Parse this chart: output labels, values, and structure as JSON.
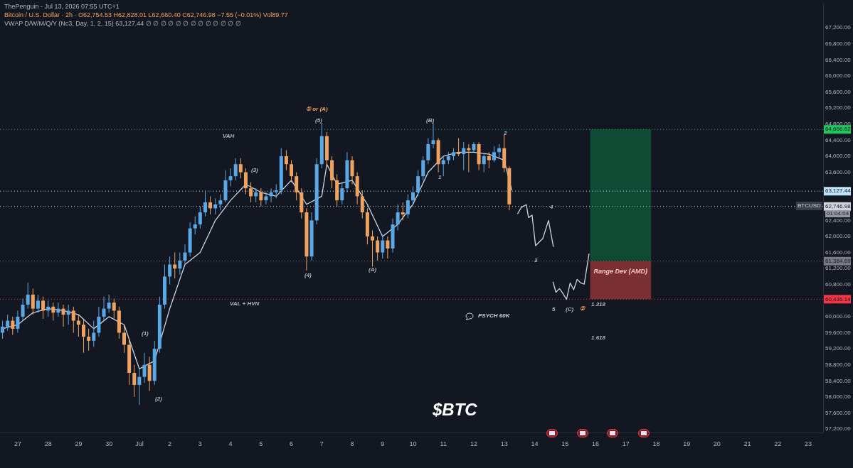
{
  "chart_data": {
    "type": "candlestick",
    "title": "Bitcoin / U.S. Dollar · 2h · O62,754.53 H62,828.01 L62,660.40 C62,746.98 −7.55 (−0.01%) Vol89.77",
    "subtitle": "VWAP D/W/M/Q/Y (Nc3, Day, 1, 2, 15) 63,127.44 ∅ ∅ ∅ ∅ ∅ ∅ ∅ ∅ ∅ ∅ ∅ ∅ ∅",
    "x": [
      "2026-06-26T12:00",
      "2026-06-26T16:00",
      "2026-06-26T20:00",
      "2026-06-27T00:00",
      "2026-06-27T04:00",
      "2026-06-27T08:00",
      "2026-06-27T12:00",
      "2026-06-27T16:00",
      "2026-06-27T20:00",
      "2026-06-28T00:00",
      "2026-06-28T04:00",
      "2026-06-28T08:00",
      "2026-06-28T12:00",
      "2026-06-28T16:00",
      "2026-06-28T20:00",
      "2026-06-29T00:00",
      "2026-06-29T04:00",
      "2026-06-29T08:00",
      "2026-06-29T12:00",
      "2026-06-29T16:00",
      "2026-06-29T20:00",
      "2026-06-30T00:00",
      "2026-06-30T04:00",
      "2026-06-30T08:00",
      "2026-06-30T12:00",
      "2026-06-30T16:00",
      "2026-06-30T20:00",
      "2026-07-01T00:00",
      "2026-07-01T04:00",
      "2026-07-01T08:00",
      "2026-07-01T12:00",
      "2026-07-01T16:00",
      "2026-07-01T20:00",
      "2026-07-02T00:00",
      "2026-07-02T04:00",
      "2026-07-02T08:00",
      "2026-07-02T12:00",
      "2026-07-02T16:00",
      "2026-07-02T20:00",
      "2026-07-03T00:00",
      "2026-07-03T04:00",
      "2026-07-03T08:00",
      "2026-07-03T12:00",
      "2026-07-03T16:00",
      "2026-07-03T20:00",
      "2026-07-04T00:00",
      "2026-07-04T04:00",
      "2026-07-04T08:00",
      "2026-07-04T12:00",
      "2026-07-04T16:00",
      "2026-07-04T20:00",
      "2026-07-05T00:00",
      "2026-07-05T04:00",
      "2026-07-05T08:00",
      "2026-07-05T12:00",
      "2026-07-05T16:00",
      "2026-07-05T20:00",
      "2026-07-06T00:00",
      "2026-07-06T04:00",
      "2026-07-06T08:00",
      "2026-07-06T12:00",
      "2026-07-06T16:00",
      "2026-07-06T20:00",
      "2026-07-07T00:00",
      "2026-07-07T04:00",
      "2026-07-07T08:00",
      "2026-07-07T12:00",
      "2026-07-07T16:00",
      "2026-07-07T20:00",
      "2026-07-08T00:00",
      "2026-07-08T04:00",
      "2026-07-08T08:00",
      "2026-07-08T12:00",
      "2026-07-08T16:00",
      "2026-07-08T20:00",
      "2026-07-09T00:00",
      "2026-07-09T04:00",
      "2026-07-09T08:00",
      "2026-07-09T12:00",
      "2026-07-09T16:00",
      "2026-07-09T20:00",
      "2026-07-10T00:00",
      "2026-07-10T04:00",
      "2026-07-10T08:00",
      "2026-07-10T12:00",
      "2026-07-10T16:00",
      "2026-07-10T20:00",
      "2026-07-11T00:00",
      "2026-07-11T04:00",
      "2026-07-11T08:00",
      "2026-07-11T12:00",
      "2026-07-11T16:00",
      "2026-07-11T20:00",
      "2026-07-12T00:00",
      "2026-07-12T04:00",
      "2026-07-12T08:00",
      "2026-07-12T12:00",
      "2026-07-12T16:00",
      "2026-07-12T20:00",
      "2026-07-13T00:00",
      "2026-07-13T04:00"
    ],
    "ohlc": [
      [
        59600,
        59900,
        59450,
        59750
      ],
      [
        59750,
        60050,
        59650,
        59900
      ],
      [
        59900,
        60000,
        59550,
        59700
      ],
      [
        59700,
        60150,
        59600,
        60000
      ],
      [
        60000,
        60450,
        59900,
        60300
      ],
      [
        60300,
        60850,
        60200,
        60550
      ],
      [
        60550,
        60700,
        60050,
        60200
      ],
      [
        60200,
        60550,
        60100,
        60400
      ],
      [
        60400,
        60500,
        59950,
        60150
      ],
      [
        60150,
        60400,
        60000,
        60250
      ],
      [
        60250,
        60350,
        59900,
        60100
      ],
      [
        60100,
        60350,
        60000,
        60200
      ],
      [
        60200,
        60300,
        59750,
        60050
      ],
      [
        60050,
        60300,
        59800,
        60150
      ],
      [
        60150,
        60250,
        59600,
        59900
      ],
      [
        59900,
        60050,
        59500,
        59800
      ],
      [
        59800,
        59950,
        59100,
        59500
      ],
      [
        59500,
        59700,
        59150,
        59400
      ],
      [
        59400,
        59900,
        59250,
        59600
      ],
      [
        59600,
        60250,
        59500,
        60000
      ],
      [
        60000,
        60500,
        59900,
        60200
      ],
      [
        60200,
        60550,
        60100,
        60350
      ],
      [
        60350,
        60450,
        59950,
        60150
      ],
      [
        60150,
        60250,
        59450,
        59600
      ],
      [
        59600,
        59800,
        59100,
        59300
      ],
      [
        59300,
        59450,
        58300,
        58600
      ],
      [
        58600,
        58800,
        58000,
        58300
      ],
      [
        58300,
        58700,
        57800,
        58500
      ],
      [
        58500,
        59100,
        58350,
        58800
      ],
      [
        58800,
        59000,
        58150,
        58400
      ],
      [
        58400,
        59400,
        58300,
        59200
      ],
      [
        59200,
        60500,
        59100,
        60300
      ],
      [
        60300,
        61300,
        60200,
        61000
      ],
      [
        61000,
        61500,
        60800,
        61300
      ],
      [
        61300,
        61600,
        60950,
        61200
      ],
      [
        61200,
        61600,
        61050,
        61400
      ],
      [
        61400,
        61800,
        61300,
        61600
      ],
      [
        61600,
        62350,
        61500,
        62200
      ],
      [
        62200,
        62500,
        62050,
        62300
      ],
      [
        62300,
        62750,
        62200,
        62600
      ],
      [
        62600,
        63150,
        62500,
        62850
      ],
      [
        62850,
        63000,
        62550,
        62700
      ],
      [
        62700,
        62950,
        62550,
        62800
      ],
      [
        62800,
        63050,
        62650,
        62900
      ],
      [
        62900,
        63650,
        62850,
        63400
      ],
      [
        63400,
        63700,
        63250,
        63500
      ],
      [
        63500,
        63950,
        63400,
        63800
      ],
      [
        63800,
        63950,
        63450,
        63600
      ],
      [
        63600,
        63700,
        63050,
        63200
      ],
      [
        63200,
        63350,
        62850,
        63000
      ],
      [
        63000,
        63200,
        62850,
        63100
      ],
      [
        63100,
        63200,
        62750,
        62900
      ],
      [
        62900,
        63100,
        62800,
        63000
      ],
      [
        63000,
        63200,
        62850,
        63100
      ],
      [
        63100,
        63300,
        62950,
        63150
      ],
      [
        63150,
        64200,
        63050,
        64000
      ],
      [
        64000,
        64150,
        63650,
        63800
      ],
      [
        63800,
        63900,
        63350,
        63500
      ],
      [
        63500,
        63600,
        62900,
        63100
      ],
      [
        63100,
        63200,
        62450,
        62600
      ],
      [
        62600,
        62700,
        61150,
        61500
      ],
      [
        61500,
        62600,
        61400,
        62400
      ],
      [
        62400,
        63950,
        62300,
        63800
      ],
      [
        63800,
        64830,
        63700,
        64500
      ],
      [
        64500,
        64600,
        63750,
        63900
      ],
      [
        63900,
        64000,
        63200,
        63400
      ],
      [
        63400,
        63550,
        62750,
        62900
      ],
      [
        62900,
        63350,
        62800,
        63200
      ],
      [
        63200,
        64100,
        63100,
        63900
      ],
      [
        63900,
        64000,
        63300,
        63500
      ],
      [
        63500,
        63600,
        62800,
        63000
      ],
      [
        63000,
        63150,
        62450,
        62600
      ],
      [
        62600,
        62700,
        61800,
        62000
      ],
      [
        62000,
        62150,
        61250,
        61900
      ],
      [
        61900,
        62000,
        61400,
        61600
      ],
      [
        61600,
        62050,
        61450,
        61900
      ],
      [
        61900,
        62000,
        61450,
        61700
      ],
      [
        61700,
        62450,
        61600,
        62300
      ],
      [
        62300,
        62800,
        62150,
        62600
      ],
      [
        62600,
        62850,
        62400,
        62550
      ],
      [
        62550,
        63050,
        62450,
        62900
      ],
      [
        62900,
        63250,
        62800,
        63100
      ],
      [
        63100,
        63650,
        63000,
        63500
      ],
      [
        63500,
        64000,
        63400,
        63900
      ],
      [
        63900,
        64450,
        63800,
        64300
      ],
      [
        64300,
        64830,
        64200,
        64400
      ],
      [
        64400,
        64450,
        63600,
        63800
      ],
      [
        63800,
        64000,
        63500,
        63900
      ],
      [
        63900,
        64100,
        63800,
        64000
      ],
      [
        64000,
        64200,
        63900,
        64100
      ],
      [
        64100,
        64450,
        64000,
        64050
      ],
      [
        64050,
        64350,
        63650,
        64200
      ],
      [
        64200,
        64300,
        63600,
        64150
      ],
      [
        64150,
        64350,
        64100,
        64300
      ],
      [
        64300,
        64350,
        63650,
        63800
      ],
      [
        63800,
        64050,
        63600,
        64000
      ],
      [
        64000,
        64100,
        63700,
        63900
      ],
      [
        63900,
        64250,
        63850,
        64100
      ],
      [
        64100,
        64300,
        63950,
        64200
      ],
      [
        64200,
        64550,
        63600,
        63700
      ],
      [
        63700,
        63750,
        62650,
        62800
      ]
    ],
    "colors": [
      "#5aa9e6",
      "#5aa9e6",
      "#f0a35e",
      "#5aa9e6",
      "#5aa9e6",
      "#5aa9e6",
      "#f0a35e",
      "#5aa9e6",
      "#f0a35e",
      "#5aa9e6",
      "#f0a35e",
      "#5aa9e6",
      "#f0a35e",
      "#5aa9e6",
      "#f0a35e",
      "#f0a35e",
      "#f0a35e",
      "#f0a35e",
      "#5aa9e6",
      "#5aa9e6",
      "#5aa9e6",
      "#5aa9e6",
      "#f0a35e",
      "#f0a35e",
      "#f0a35e",
      "#f0a35e",
      "#f0a35e",
      "#5aa9e6",
      "#5aa9e6",
      "#f0a35e",
      "#5aa9e6",
      "#5aa9e6",
      "#5aa9e6",
      "#5aa9e6",
      "#f0a35e",
      "#5aa9e6",
      "#5aa9e6",
      "#5aa9e6",
      "#5aa9e6",
      "#5aa9e6",
      "#5aa9e6",
      "#f0a35e",
      "#5aa9e6",
      "#5aa9e6",
      "#5aa9e6",
      "#5aa9e6",
      "#5aa9e6",
      "#f0a35e",
      "#f0a35e",
      "#f0a35e",
      "#5aa9e6",
      "#f0a35e",
      "#5aa9e6",
      "#5aa9e6",
      "#5aa9e6",
      "#5aa9e6",
      "#f0a35e",
      "#f0a35e",
      "#f0a35e",
      "#f0a35e",
      "#f0a35e",
      "#5aa9e6",
      "#5aa9e6",
      "#5aa9e6",
      "#f0a35e",
      "#f0a35e",
      "#f0a35e",
      "#5aa9e6",
      "#5aa9e6",
      "#f0a35e",
      "#f0a35e",
      "#f0a35e",
      "#f0a35e",
      "#f0a35e",
      "#f0a35e",
      "#5aa9e6",
      "#f0a35e",
      "#5aa9e6",
      "#5aa9e6",
      "#f0a35e",
      "#5aa9e6",
      "#5aa9e6",
      "#5aa9e6",
      "#5aa9e6",
      "#5aa9e6",
      "#5aa9e6",
      "#f0a35e",
      "#5aa9e6",
      "#5aa9e6",
      "#5aa9e6",
      "#f0a35e",
      "#5aa9e6",
      "#f0a35e",
      "#5aa9e6",
      "#f0a35e",
      "#5aa9e6",
      "#f0a35e",
      "#5aa9e6",
      "#5aa9e6",
      "#f0a35e",
      "#f0a35e"
    ],
    "series": [
      {
        "type": "line",
        "color": "#c9d7e8",
        "x": [
          "2026-06-26T12:00",
          "2026-06-27T00:00",
          "2026-06-27T12:00",
          "2026-06-28T00:00",
          "2026-06-28T12:00",
          "2026-06-29T00:00",
          "2026-06-29T12:00",
          "2026-06-30T00:00",
          "2026-06-30T12:00",
          "2026-07-01T00:00",
          "2026-07-01T12:00",
          "2026-07-02T00:00",
          "2026-07-02T12:00",
          "2026-07-03T00:00",
          "2026-07-03T12:00",
          "2026-07-04T00:00",
          "2026-07-04T12:00",
          "2026-07-05T00:00",
          "2026-07-05T12:00",
          "2026-07-06T00:00",
          "2026-07-06T12:00",
          "2026-07-07T00:00",
          "2026-07-07T04:00",
          "2026-07-07T12:00",
          "2026-07-08T00:00",
          "2026-07-08T12:00",
          "2026-07-09T00:00",
          "2026-07-09T12:00",
          "2026-07-10T00:00",
          "2026-07-10T12:00",
          "2026-07-11T00:00",
          "2026-07-11T12:00",
          "2026-07-12T00:00",
          "2026-07-12T12:00",
          "2026-07-13T00:00",
          "2026-07-13T06:00"
        ],
        "values": [
          59700,
          59800,
          60100,
          60200,
          60150,
          60050,
          59700,
          60000,
          59800,
          58700,
          58900,
          60200,
          61300,
          61600,
          62400,
          62900,
          63300,
          63100,
          63000,
          63400,
          62800,
          63000,
          63800,
          63300,
          63400,
          62800,
          62000,
          62300,
          62800,
          63600,
          64000,
          64100,
          64100,
          64050,
          63900,
          63150
        ]
      },
      {
        "type": "line",
        "color": "#d1d4dc",
        "x": [
          "2026-07-13T10:30",
          "2026-07-13T13:40",
          "2026-07-13T17:30",
          "2026-07-13T19:10",
          "2026-07-13T22:00",
          "2026-07-14T00:45",
          "2026-07-14T03:40",
          "2026-07-14T06:30",
          "2026-07-14T11:00",
          "2026-07-14T14:50"
        ],
        "values": [
          62560,
          62730,
          62790,
          62470,
          62530,
          61770,
          61860,
          61950,
          62400,
          61740
        ]
      },
      {
        "type": "line",
        "color": "#d1d4dc",
        "x": [
          "2026-07-14T14:30",
          "2026-07-14T16:50",
          "2026-07-14T19:40",
          "2026-07-14T22:20",
          "2026-07-15T01:10",
          "2026-07-15T04:05",
          "2026-07-15T06:50",
          "2026-07-15T09:35",
          "2026-07-15T12:30",
          "2026-07-15T15:10",
          "2026-07-15T19:00"
        ],
        "values": [
          60870,
          60610,
          60700,
          60580,
          60430,
          60840,
          60670,
          60930,
          60840,
          60810,
          61570
        ]
      }
    ],
    "xlim": [
      "2026-06-26T10:00",
      "2026-07-23T11:45"
    ],
    "xticks": [
      {
        "value": "2026-06-27",
        "label": "27"
      },
      {
        "value": "2026-06-28",
        "label": "28"
      },
      {
        "value": "2026-06-29",
        "label": "29"
      },
      {
        "value": "2026-06-30",
        "label": "30"
      },
      {
        "value": "2026-07-01",
        "label": "Jul"
      },
      {
        "value": "2026-07-02",
        "label": "2"
      },
      {
        "value": "2026-07-03",
        "label": "3"
      },
      {
        "value": "2026-07-04",
        "label": "4"
      },
      {
        "value": "2026-07-05",
        "label": "5"
      },
      {
        "value": "2026-07-06",
        "label": "6"
      },
      {
        "value": "2026-07-07",
        "label": "7"
      },
      {
        "value": "2026-07-08",
        "label": "8"
      },
      {
        "value": "2026-07-09",
        "label": "9"
      },
      {
        "value": "2026-07-10",
        "label": "10"
      },
      {
        "value": "2026-07-11",
        "label": "11"
      },
      {
        "value": "2026-07-12",
        "label": "12"
      },
      {
        "value": "2026-07-13",
        "label": "13"
      },
      {
        "value": "2026-07-14",
        "label": "14"
      },
      {
        "value": "2026-07-15",
        "label": "15"
      },
      {
        "value": "2026-07-16",
        "label": "16"
      },
      {
        "value": "2026-07-17",
        "label": "17"
      },
      {
        "value": "2026-07-18",
        "label": "18"
      },
      {
        "value": "2026-07-19",
        "label": "19"
      },
      {
        "value": "2026-07-20",
        "label": "20"
      },
      {
        "value": "2026-07-21",
        "label": "21"
      },
      {
        "value": "2026-07-22",
        "label": "22"
      },
      {
        "value": "2026-07-23",
        "label": "23"
      }
    ],
    "ylim": [
      57110,
      67790
    ],
    "yticks": [
      {
        "value": 57200,
        "label": "57,200.00"
      },
      {
        "value": 57600,
        "label": "57,600.00"
      },
      {
        "value": 58000,
        "label": "58,000.00"
      },
      {
        "value": 58400,
        "label": "58,400.00"
      },
      {
        "value": 58800,
        "label": "58,800.00"
      },
      {
        "value": 59200,
        "label": "59,200.00"
      },
      {
        "value": 59600,
        "label": "59,600.00"
      },
      {
        "value": 60000,
        "label": "60,000.00"
      },
      {
        "value": 60800,
        "label": "60,800.00"
      },
      {
        "value": 61200,
        "label": "61,200.00"
      },
      {
        "value": 61600,
        "label": "61,600.00"
      },
      {
        "value": 62000,
        "label": "62,000.00"
      },
      {
        "value": 62400,
        "label": "62,400.00"
      },
      {
        "value": 63600,
        "label": "63,600.00"
      },
      {
        "value": 64000,
        "label": "64,000.00"
      },
      {
        "value": 64400,
        "label": "64,400.00"
      },
      {
        "value": 64800,
        "label": "64,800.00"
      },
      {
        "value": 65200,
        "label": "65,200.00"
      },
      {
        "value": 65600,
        "label": "65,600.00"
      },
      {
        "value": 66000,
        "label": "66,000.00"
      },
      {
        "value": 66400,
        "label": "66,400.00"
      },
      {
        "value": 66800,
        "label": "66,800.00"
      },
      {
        "value": 67200,
        "label": "67,200.00"
      }
    ],
    "ref_lines": [
      {
        "axis": "y",
        "value": 64666.62,
        "label": "64,666.62",
        "color": "#22c55e",
        "line_style": "dotted"
      },
      {
        "axis": "y",
        "value": 63127.44,
        "label": "63,127.44",
        "color": "#bfe3fb",
        "line_style": "dotted"
      },
      {
        "axis": "y",
        "value": 62746.98,
        "label": "62,746.98",
        "color": "#d1d4dc",
        "line_style": "dotted"
      },
      {
        "axis": "y",
        "value": 61384.69,
        "label": "61,384.69",
        "color": "#787b86",
        "line_style": "dotted"
      },
      {
        "axis": "y",
        "value": 60435.14,
        "label": "60,435.14",
        "color": "#f23645",
        "line_style": "dotted"
      }
    ],
    "bands": [
      {
        "axis": "y",
        "from": 61384.69,
        "to": 64666.62,
        "color": "#0f4a34"
      },
      {
        "axis": "y",
        "from": 60435.14,
        "to": 61384.69,
        "color": "#7a2f33",
        "label": "Range Dev (AMD)"
      }
    ],
    "annotations": [
      "ThePenguin - Jul 13, 2026 07:55 UTC+1",
      "$BTC",
      "① or (A)",
      "(1)",
      "(2)",
      "(3)",
      "(4)",
      "(5)",
      "(A)",
      "(B)",
      "1",
      "2",
      "3",
      "4",
      "5",
      "(C)",
      "②",
      "VAH",
      "VAL + HVN",
      "PSYCH 60K",
      "1.318",
      "1.618",
      "BTCUSD",
      "01:04:04"
    ],
    "legend": false,
    "grid": false
  }
}
